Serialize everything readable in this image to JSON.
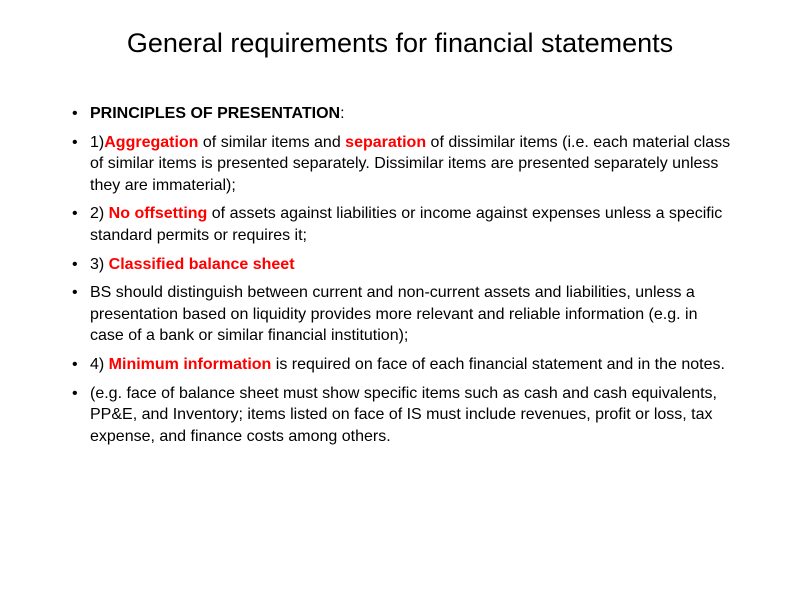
{
  "slide": {
    "title": "General requirements for financial statements",
    "bullets": [
      {
        "segments": [
          {
            "text": "PRINCIPLES OF PRESENTATION",
            "style": "bold"
          },
          {
            "text": ":",
            "style": "plain"
          }
        ]
      },
      {
        "segments": [
          {
            "text": " 1)",
            "style": "plain"
          },
          {
            "text": "Aggregation",
            "style": "emphasis"
          },
          {
            "text": " of  similar items and ",
            "style": "plain"
          },
          {
            "text": "separation",
            "style": "emphasis"
          },
          {
            "text": " of dissimilar items (i.e. each material class of similar items is presented separately. Dissimilar items are presented separately unless they are immaterial);",
            "style": "plain"
          }
        ]
      },
      {
        "segments": [
          {
            "text": " 2) ",
            "style": "plain"
          },
          {
            "text": "No offsetting",
            "style": "emphasis"
          },
          {
            "text": " of assets against liabilities or income against expenses unless a specific standard permits or requires it;",
            "style": "plain"
          }
        ]
      },
      {
        "segments": [
          {
            "text": " 3) ",
            "style": "plain"
          },
          {
            "text": "Classified balance sheet",
            "style": "emphasis"
          }
        ]
      },
      {
        "segments": [
          {
            "text": "BS should distinguish between current and non-current assets and liabilities, unless a presentation based on liquidity provides more relevant and reliable information (e.g. in case of a bank or similar financial institution);",
            "style": "plain"
          }
        ]
      },
      {
        "segments": [
          {
            "text": " 4) ",
            "style": "plain"
          },
          {
            "text": "Minimum information",
            "style": "emphasis"
          },
          {
            "text": " is required on face of each financial statement and in the notes.",
            "style": "plain"
          }
        ]
      },
      {
        "segments": [
          {
            "text": "(e.g. face of balance sheet must show specific items such as cash and cash equivalents, PP&E, and Inventory; items listed on face of IS must include revenues, profit or loss, tax expense, and finance costs  among others.",
            "style": "plain"
          }
        ]
      }
    ],
    "colors": {
      "background": "#ffffff",
      "text": "#000000",
      "emphasis": "#ff0000"
    },
    "typography": {
      "title_fontsize": 27,
      "body_fontsize": 16,
      "font_family": "Arial"
    }
  }
}
